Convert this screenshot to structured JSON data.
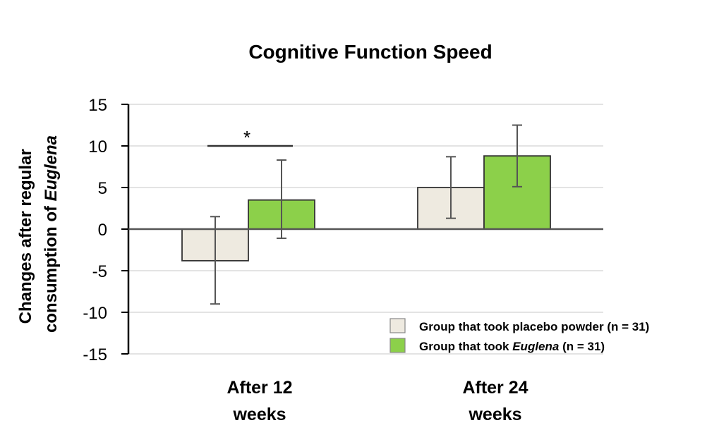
{
  "chart_data": {
    "type": "bar",
    "title": "Cognitive Function Speed",
    "ylabel": {
      "line1": "Changes after regular",
      "line2_prefix": "consumption of ",
      "line2_italic": "Euglena"
    },
    "xlabel": "",
    "ylim": [
      -15,
      15
    ],
    "yticks": [
      15,
      10,
      5,
      0,
      -5,
      -10,
      -15
    ],
    "ytick_labels": [
      "15",
      "10",
      "5",
      "0",
      "-5",
      "-10",
      "-15"
    ],
    "grid": true,
    "legend_position": "bottom-right",
    "categories": [
      {
        "line1": "After 12",
        "line2": "weeks"
      },
      {
        "line1": "After 24",
        "line2": "weeks"
      }
    ],
    "series": [
      {
        "name": "Group that took placebo powder (n = 31)",
        "legend_prefix": "Group that took placebo powder (n = 31)",
        "legend_italic": "",
        "legend_suffix": "",
        "color": "#EEEAE0",
        "values": [
          -3.8,
          5.0
        ],
        "error_low": [
          -9.0,
          1.3
        ],
        "error_high": [
          1.5,
          8.7
        ]
      },
      {
        "name": "Group that took Euglena (n = 31)",
        "legend_prefix": "Group that took ",
        "legend_italic": "Euglena",
        "legend_suffix": " (n = 31)",
        "color": "#8CD04A",
        "values": [
          3.5,
          8.8
        ],
        "error_low": [
          -1.1,
          5.1
        ],
        "error_high": [
          8.3,
          12.5
        ]
      }
    ],
    "annotations": [
      {
        "text": "*",
        "category_index": 0,
        "y": 10
      }
    ]
  }
}
